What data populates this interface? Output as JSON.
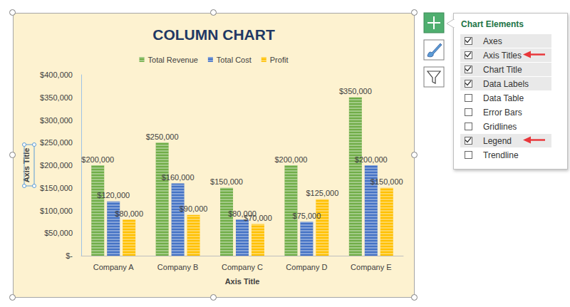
{
  "chart_data": {
    "type": "bar",
    "title": "COLUMN CHART",
    "xlabel": "Axis Title",
    "ylabel": "Axis Title",
    "categories": [
      "Company A",
      "Company B",
      "Company C",
      "Company D",
      "Company E"
    ],
    "series": [
      {
        "name": "Total Revenue",
        "color": "#70ad47",
        "values": [
          200000,
          250000,
          150000,
          200000,
          350000
        ],
        "value_labels": [
          "$200,000",
          "$250,000",
          "$150,000",
          "$200,000",
          "$350,000"
        ]
      },
      {
        "name": "Total Cost",
        "color": "#4472c4",
        "values": [
          120000,
          160000,
          80000,
          75000,
          200000
        ],
        "value_labels": [
          "$120,000",
          "$160,000",
          "$80,000",
          "$75,000",
          "$200,000"
        ]
      },
      {
        "name": "Profit",
        "color": "#ffc000",
        "values": [
          80000,
          90000,
          70000,
          125000,
          150000
        ],
        "value_labels": [
          "$80,000",
          "$90,000",
          "$70,000",
          "$125,000",
          "$150,000"
        ]
      }
    ],
    "ylim": [
      0,
      400000
    ],
    "yticks": [
      {
        "value": 0,
        "label": "$-"
      },
      {
        "value": 50000,
        "label": "$50,000"
      },
      {
        "value": 100000,
        "label": "$100,000"
      },
      {
        "value": 150000,
        "label": "$150,000"
      },
      {
        "value": 200000,
        "label": "$200,000"
      },
      {
        "value": 250000,
        "label": "$250,000"
      },
      {
        "value": 300000,
        "label": "$300,000"
      },
      {
        "value": 350000,
        "label": "$350,000"
      },
      {
        "value": 400000,
        "label": "$400,000"
      }
    ],
    "grid": false,
    "legend": "top",
    "data_labels": true
  },
  "chart_elements": {
    "title": "Chart Elements",
    "items": [
      {
        "label": "Axes",
        "checked": true
      },
      {
        "label": "Axis Titles",
        "checked": true,
        "marked": true
      },
      {
        "label": "Chart Title",
        "checked": true
      },
      {
        "label": "Data Labels",
        "checked": true
      },
      {
        "label": "Data Table",
        "checked": false
      },
      {
        "label": "Error Bars",
        "checked": false
      },
      {
        "label": "Gridlines",
        "checked": false
      },
      {
        "label": "Legend",
        "checked": true,
        "marked": true
      },
      {
        "label": "Trendline",
        "checked": false
      }
    ]
  }
}
